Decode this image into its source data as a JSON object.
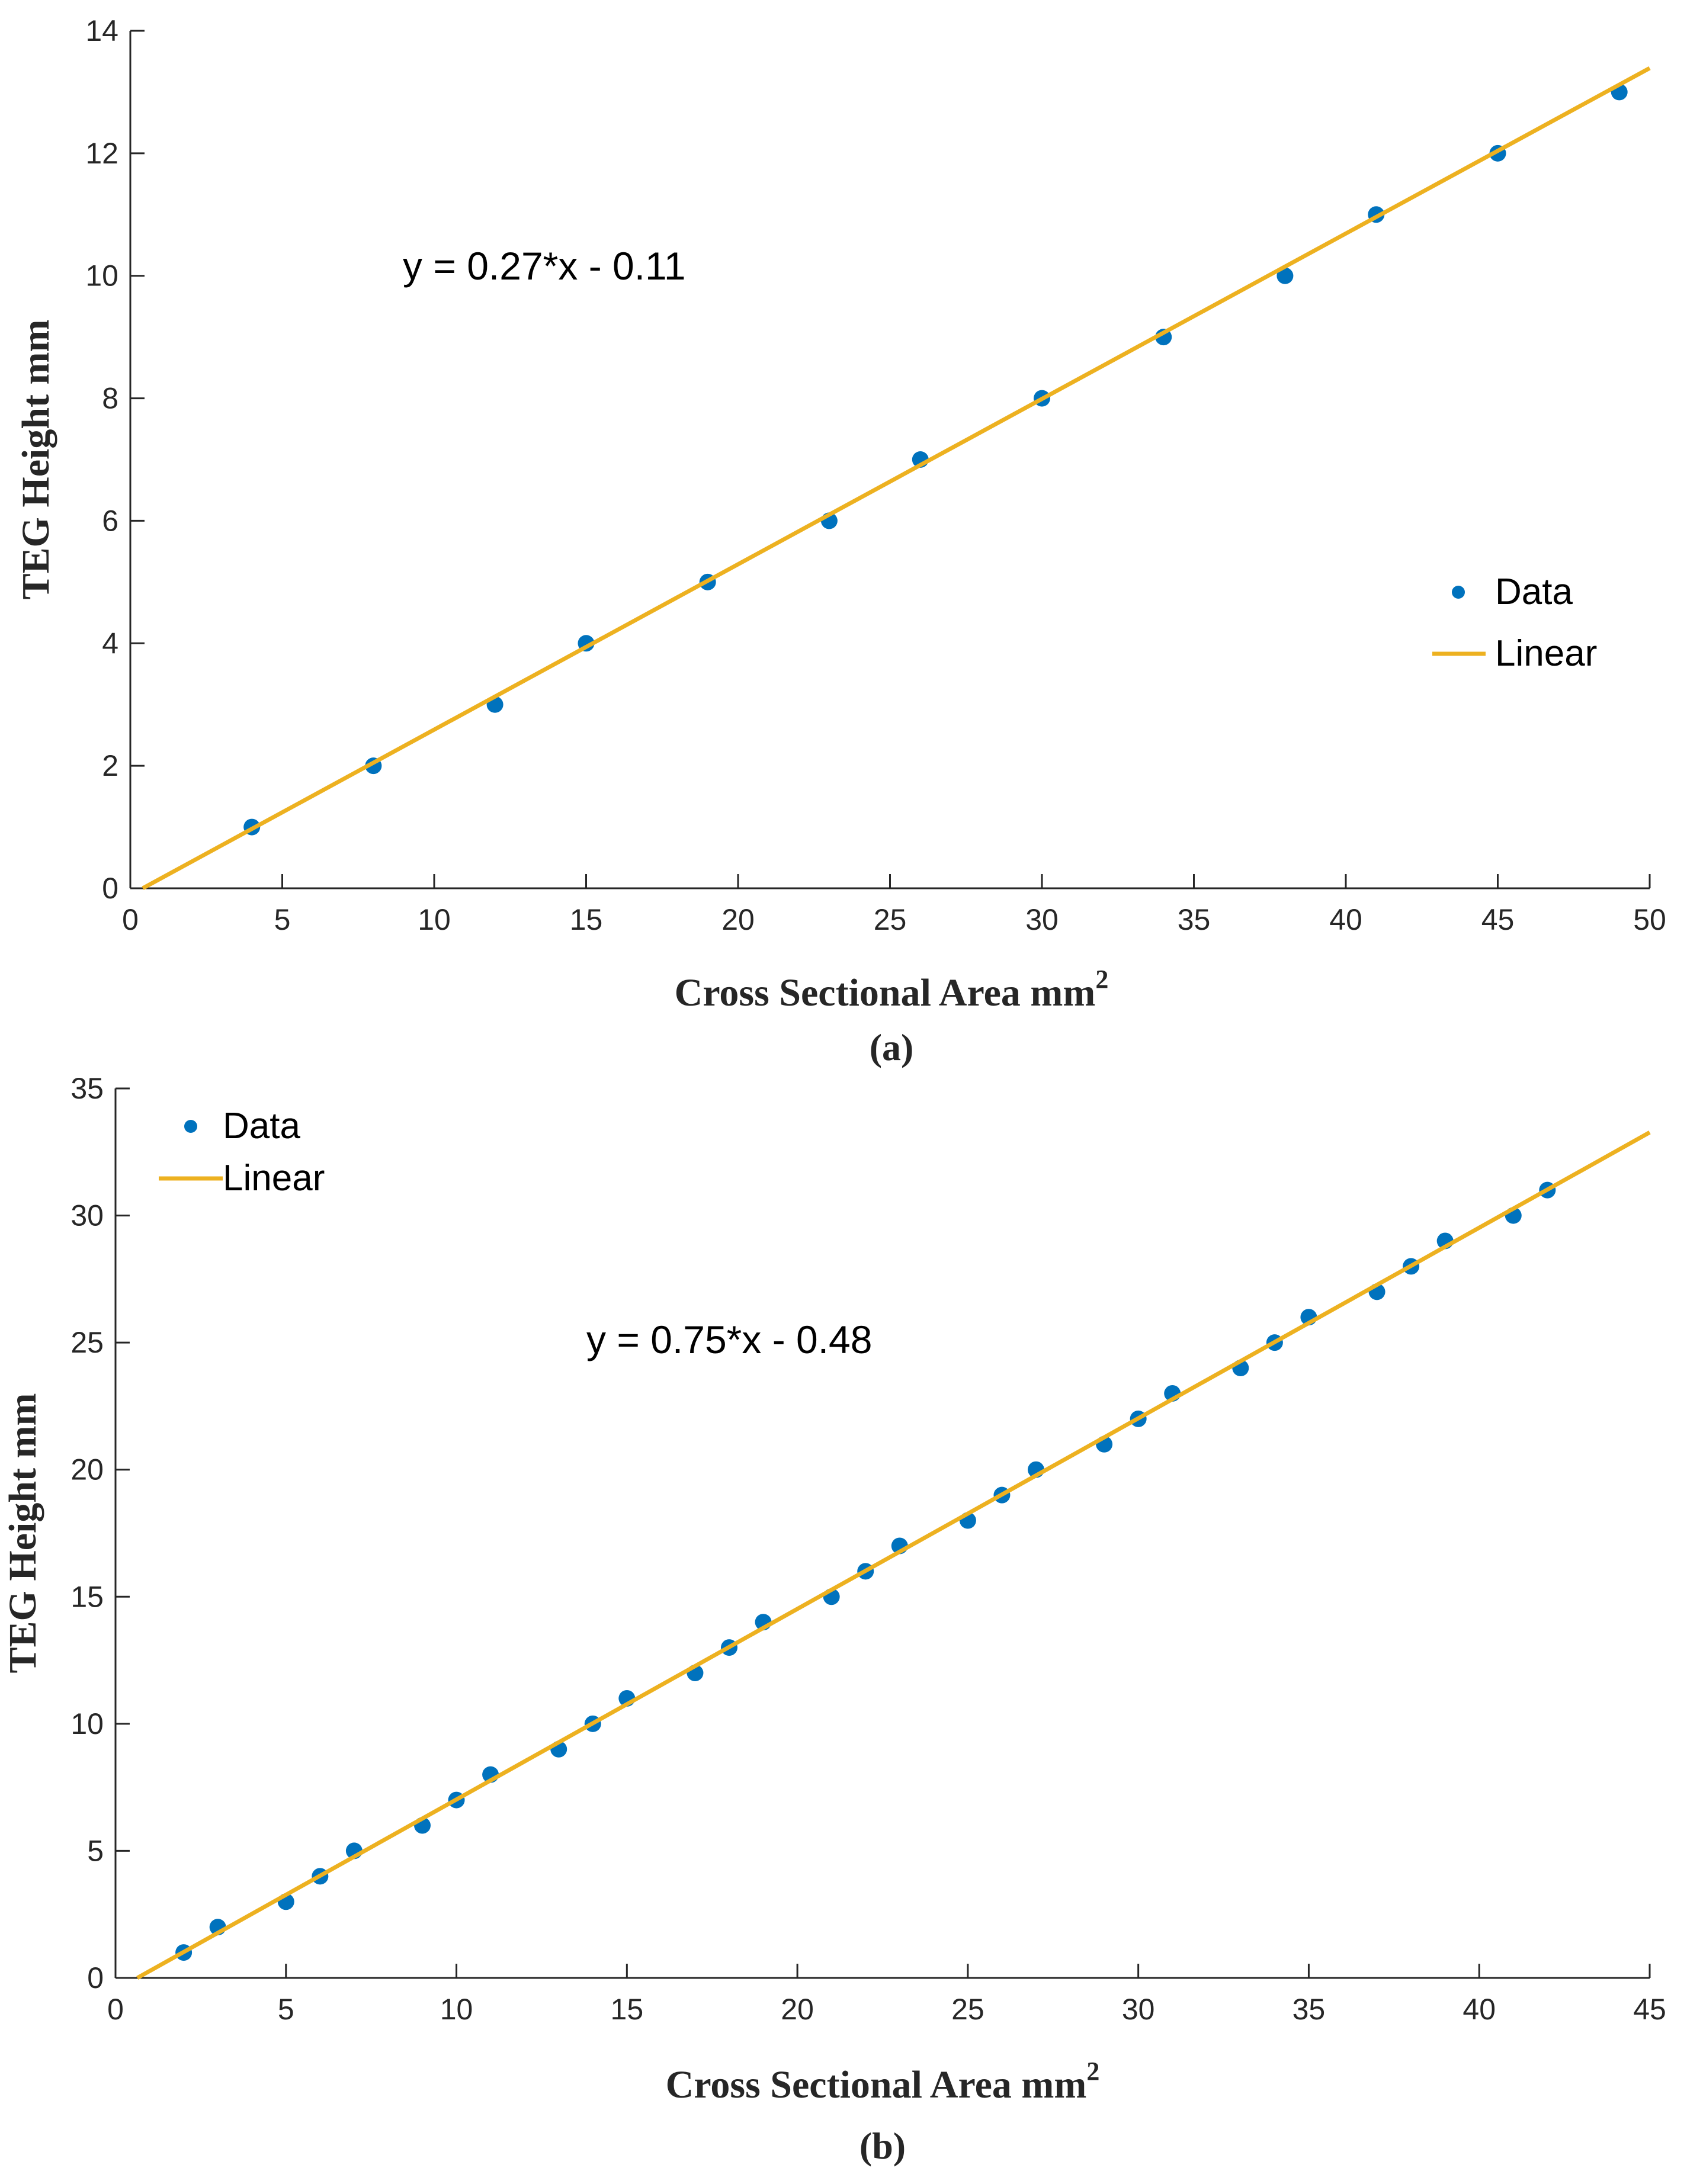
{
  "chart_data": [
    {
      "type": "scatter",
      "panel_label": "(a)",
      "xlabel": "Cross Sectional Area mm",
      "xlabel_superscript": "2",
      "ylabel": "TEG Height mm",
      "xlim": [
        0,
        50
      ],
      "ylim": [
        0,
        14
      ],
      "xticks": [
        0,
        5,
        10,
        15,
        20,
        25,
        30,
        35,
        40,
        45,
        50
      ],
      "yticks": [
        0,
        2,
        4,
        6,
        8,
        10,
        12,
        14
      ],
      "annotation": "y = 0.27*x - 0.11",
      "legend": {
        "position": "right",
        "entries": [
          "Data",
          "Linear"
        ]
      },
      "fit": {
        "slope": 0.27,
        "intercept": -0.11,
        "x_start": 0.41,
        "x_end": 50
      },
      "series": [
        {
          "name": "Data",
          "x": [
            4,
            8,
            12,
            15,
            19,
            23,
            26,
            30,
            34,
            38,
            41,
            45,
            49
          ],
          "y": [
            1,
            2,
            3,
            4,
            5,
            6,
            7,
            8,
            9,
            10,
            11,
            12,
            13
          ]
        }
      ],
      "colors": {
        "data": "#0072BD",
        "fit": "#EDB120"
      }
    },
    {
      "type": "scatter",
      "panel_label": "(b)",
      "xlabel": "Cross Sectional Area mm",
      "xlabel_superscript": "2",
      "ylabel": "TEG Height mm",
      "xlim": [
        0,
        45
      ],
      "ylim": [
        0,
        35
      ],
      "xticks": [
        0,
        5,
        10,
        15,
        20,
        25,
        30,
        35,
        40,
        45
      ],
      "yticks": [
        0,
        5,
        10,
        15,
        20,
        25,
        30,
        35
      ],
      "annotation": "y = 0.75*x - 0.48",
      "legend": {
        "position": "top-left",
        "entries": [
          "Data",
          "Linear"
        ]
      },
      "fit": {
        "slope": 0.75,
        "intercept": -0.48,
        "x_start": 0.64,
        "x_end": 45
      },
      "series": [
        {
          "name": "Data",
          "x": [
            2,
            3,
            5,
            6,
            7,
            9,
            10,
            11,
            13,
            14,
            15,
            17,
            18,
            19,
            21,
            22,
            23,
            25,
            26,
            27,
            29,
            30,
            31,
            33,
            34,
            35,
            37,
            38,
            39,
            41,
            42
          ],
          "y": [
            1,
            2,
            3,
            4,
            5,
            6,
            7,
            8,
            9,
            10,
            11,
            12,
            13,
            14,
            15,
            16,
            17,
            18,
            19,
            20,
            21,
            22,
            23,
            24,
            25,
            26,
            27,
            28,
            29,
            30,
            31
          ]
        }
      ],
      "colors": {
        "data": "#0072BD",
        "fit": "#EDB120"
      }
    }
  ]
}
